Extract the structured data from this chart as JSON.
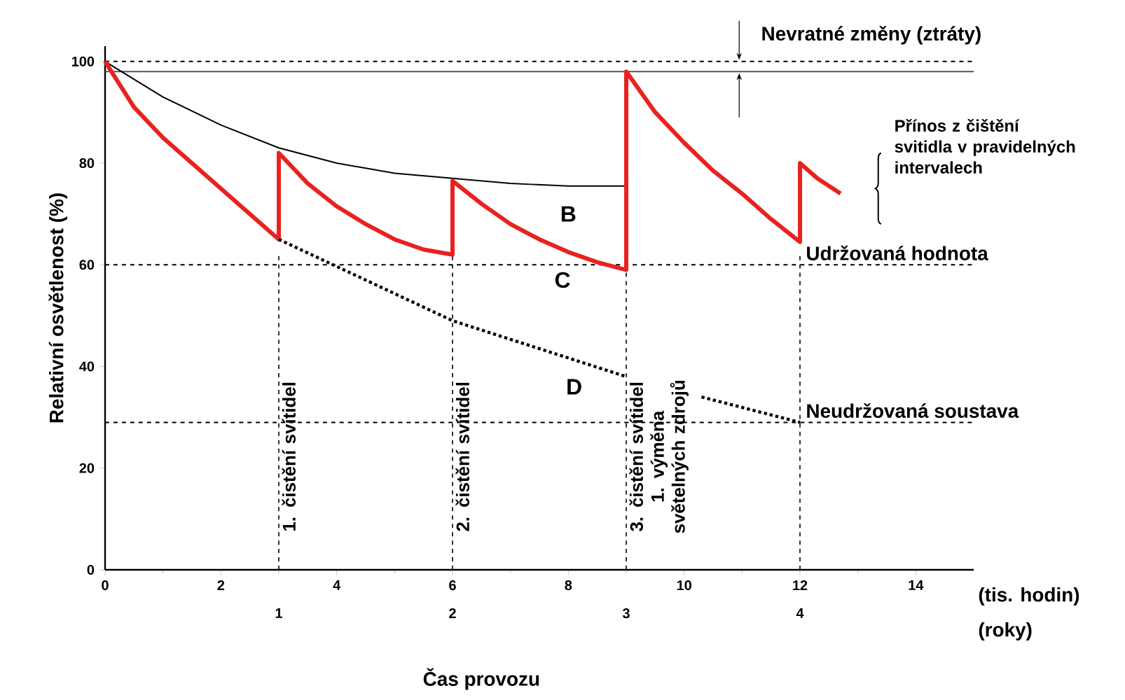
{
  "chart_data": {
    "type": "line",
    "xlabel": "Čas provozu",
    "ylabel": "Relativní osvětlenost (%)",
    "x2label": "(roky)",
    "xlim": [
      0,
      15
    ],
    "xticks": [
      0,
      2,
      4,
      6,
      8,
      10,
      12,
      14
    ],
    "ylim": [
      0,
      103
    ],
    "yticks": [
      0,
      20,
      40,
      60,
      80,
      100
    ],
    "x2lim": [
      0,
      5
    ],
    "x2ticks": [
      1,
      2,
      3,
      4
    ],
    "series": [
      {
        "color": "#000000",
        "line_style": "solid",
        "x": [
          0,
          1,
          2,
          3,
          4,
          5,
          6,
          7,
          8,
          9
        ],
        "values": [
          100,
          93,
          87.5,
          83,
          80,
          78,
          77,
          76,
          75.5,
          75.5
        ]
      },
      {
        "color": "#e8221f",
        "line_style": "solid",
        "x": [
          0,
          0.5,
          1,
          1.5,
          2,
          2.5,
          3,
          3,
          3.5,
          4,
          4.5,
          5,
          5.5,
          6,
          6,
          6.5,
          7,
          7.5,
          8,
          8.5,
          9,
          9,
          9.5,
          10,
          10.5,
          11,
          11.5,
          12,
          12,
          12.3,
          12.7
        ],
        "values": [
          100,
          91,
          85,
          80,
          75,
          70,
          65,
          82,
          76,
          71.5,
          68,
          65,
          63,
          62,
          76.5,
          72,
          68,
          65,
          62.5,
          60.5,
          59,
          98,
          90,
          84,
          78.5,
          74,
          69,
          64.5,
          80,
          77,
          74
        ]
      },
      {
        "color": "#000000",
        "line_style": "dotted",
        "x": [
          3,
          6,
          9,
          9.6,
          10.3,
          12
        ],
        "values": [
          65,
          49,
          38,
          null,
          34,
          29
        ]
      }
    ],
    "ref_lines": [
      {
        "axis": "y",
        "value": 100,
        "line_style": "dashed",
        "color": "#000000"
      },
      {
        "axis": "y",
        "value": 98,
        "line_style": "solid",
        "color": "#555555"
      },
      {
        "axis": "y",
        "value": 60,
        "line_style": "dashed",
        "color": "#000000",
        "label": "Udržovaná hodnota"
      },
      {
        "axis": "y",
        "value": 29,
        "line_style": "dashed",
        "color": "#000000",
        "label": "Neudržovaná soustava"
      },
      {
        "axis": "x",
        "value": 3,
        "line_style": "dashed",
        "color": "#000000",
        "label": "1. čistění svítidel"
      },
      {
        "axis": "x",
        "value": 6,
        "line_style": "dashed",
        "color": "#000000",
        "label": "2. čistění svítidel"
      },
      {
        "axis": "x",
        "value": 9,
        "line_style": "dashed",
        "color": "#000000",
        "label": "3. čistění svítidel 1. výměna světelných zdrojů"
      },
      {
        "axis": "x",
        "value": 12,
        "line_style": "dashed",
        "color": "#000000"
      }
    ],
    "annotations": [
      "B",
      "C",
      "D",
      "Nevratné změny (ztráty)",
      "Přínos z čištění svitidla v pravidelných intervalech",
      "(tis. hodin)"
    ]
  }
}
